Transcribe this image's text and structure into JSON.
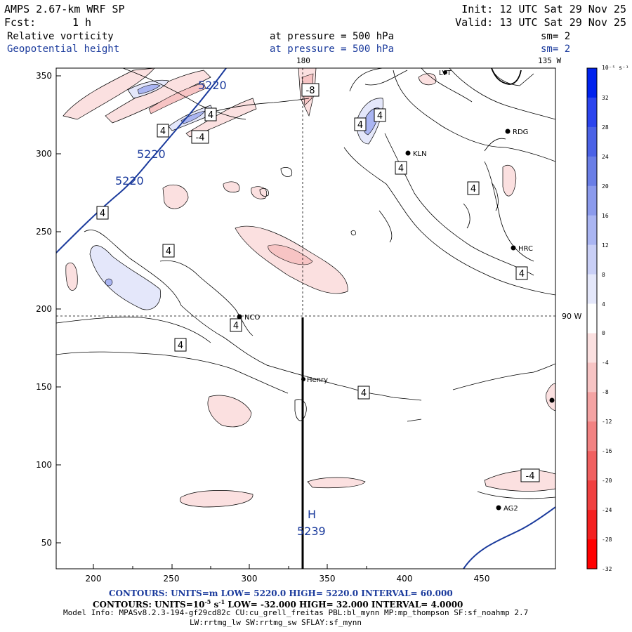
{
  "header": {
    "model_title": "AMPS 2.67-km WRF SP",
    "init": "Init: 12 UTC Sat 29 Nov 25",
    "fcst_label": "Fcst:",
    "fcst_value": "1 h",
    "valid": "Valid: 13 UTC Sat 29 Nov 25",
    "field1_name": "Relative vorticity",
    "field1_level": "at pressure =  500 hPa",
    "field1_smooth": "sm= 2",
    "field2_name": "Geopotential height",
    "field2_level": "at pressure =  500 hPa",
    "field2_smooth": "sm= 2"
  },
  "map": {
    "top_labels": [
      "180",
      "135 W"
    ],
    "side_label": "90 W",
    "x_ticks": [
      "200",
      "250",
      "300",
      "350",
      "400",
      "450"
    ],
    "y_ticks": [
      "350",
      "300",
      "250",
      "200",
      "150",
      "100",
      "50"
    ],
    "stations": [
      "NCO",
      "Henry",
      "KLN",
      "RDG",
      "HRC",
      "AG2",
      "LVT"
    ],
    "contour_labels": [
      "4",
      "4",
      "4",
      "4",
      "4",
      "4",
      "4",
      "4",
      "4",
      "4",
      "4",
      "-4",
      "-4",
      "-8"
    ],
    "height_labels": [
      "5220",
      "5220",
      "5220"
    ],
    "high_center": {
      "letter": "H",
      "value": "5239"
    }
  },
  "colorbar": {
    "unit": "10⁻⁵ s⁻¹",
    "labels": [
      "32",
      "28",
      "24",
      "20",
      "16",
      "12",
      "8",
      "4",
      "0",
      "-4",
      "-8",
      "-12",
      "-16",
      "-20",
      "-24",
      "-28",
      "-32"
    ],
    "colors": [
      "#0022ee",
      "#2b44ee",
      "#4b62e6",
      "#6a7ee6",
      "#8b9aec",
      "#aab5f2",
      "#c9cff6",
      "#e4e7fa",
      "#ffffff",
      "#fbe0e0",
      "#f7c4c4",
      "#f4a3a3",
      "#f28282",
      "#f06060",
      "#f04040",
      "#f42020",
      "#ff0000"
    ]
  },
  "footer": {
    "line1": "CONTOURS:  UNITS=m  LOW=   5220.0         HIGH=  5220.0       INTERVAL=   60.000",
    "line2_a": "CONTOURS:  UNITS=10",
    "line2_sup": "-5",
    "line2_b": " s",
    "line2_sup2": "-1",
    "line2_c": "   LOW=  -32.000        HIGH=  32.000       INTERVAL=   4.0000",
    "line3": "Model Info: MPASv8.2.3-194-gf29cd82c CU:cu_grell_freitas PBL:bl_mynn MP:mp_thompson SF:sf_noahmp 2.7",
    "line4": "LW:rrtmg_lw SW:rrtmg_sw SFLAY:sf_mynn"
  }
}
